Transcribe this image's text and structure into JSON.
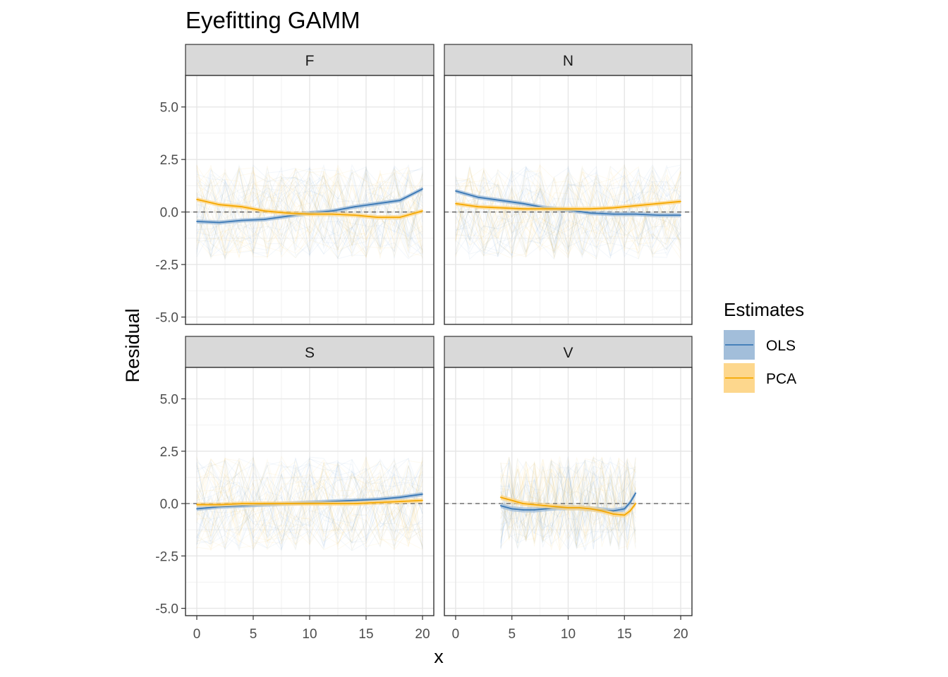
{
  "chart_data": {
    "type": "line",
    "title": "Eyefitting GAMM",
    "xlabel": "x",
    "ylabel": "Residual",
    "xlim": [
      -1,
      21
    ],
    "ylim": [
      -5.35,
      6.5
    ],
    "x_ticks": [
      0,
      5,
      10,
      15,
      20
    ],
    "y_ticks": [
      -5.0,
      -2.5,
      0.0,
      2.5,
      5.0
    ],
    "x_tick_labels": [
      "0",
      "5",
      "10",
      "15",
      "20"
    ],
    "y_tick_labels": [
      "-5.0",
      "-2.5",
      "0.0",
      "2.5",
      "5.0"
    ],
    "reference_line": 0,
    "grid": true,
    "legend": {
      "title": "Estimates",
      "position": "right",
      "entries": [
        {
          "name": "OLS",
          "color": "#3a78b5",
          "fill": "#9dbbd8"
        },
        {
          "name": "PCA",
          "color": "#f5a800",
          "fill": "#fdd587"
        }
      ]
    },
    "panels": [
      {
        "name": "F",
        "series": [
          {
            "name": "OLS",
            "x": [
              0,
              2,
              4,
              6,
              8,
              10,
              12,
              14,
              16,
              18,
              20
            ],
            "values": [
              -0.45,
              -0.5,
              -0.4,
              -0.35,
              -0.2,
              -0.05,
              0.05,
              0.25,
              0.4,
              0.55,
              1.1
            ],
            "band": 0.1
          },
          {
            "name": "PCA",
            "x": [
              0,
              2,
              4,
              6,
              8,
              10,
              12,
              14,
              16,
              18,
              20
            ],
            "values": [
              0.6,
              0.35,
              0.25,
              0.05,
              -0.05,
              -0.1,
              -0.1,
              -0.15,
              -0.25,
              -0.25,
              0.05
            ],
            "band": 0.1
          }
        ]
      },
      {
        "name": "N",
        "series": [
          {
            "name": "OLS",
            "x": [
              0,
              2,
              4,
              6,
              8,
              10,
              12,
              14,
              16,
              18,
              20
            ],
            "values": [
              1.0,
              0.7,
              0.55,
              0.4,
              0.2,
              0.1,
              -0.05,
              -0.1,
              -0.1,
              -0.15,
              -0.15
            ],
            "band": 0.1
          },
          {
            "name": "PCA",
            "x": [
              0,
              2,
              4,
              6,
              8,
              10,
              12,
              14,
              16,
              18,
              20
            ],
            "values": [
              0.4,
              0.25,
              0.2,
              0.15,
              0.15,
              0.15,
              0.15,
              0.2,
              0.3,
              0.4,
              0.5
            ],
            "band": 0.1
          }
        ]
      },
      {
        "name": "S",
        "series": [
          {
            "name": "OLS",
            "x": [
              0,
              2,
              4,
              6,
              8,
              10,
              12,
              14,
              16,
              18,
              20
            ],
            "values": [
              -0.25,
              -0.15,
              -0.1,
              -0.05,
              0.0,
              0.05,
              0.1,
              0.15,
              0.2,
              0.3,
              0.45
            ],
            "band": 0.1
          },
          {
            "name": "PCA",
            "x": [
              0,
              2,
              4,
              6,
              8,
              10,
              12,
              14,
              16,
              18,
              20
            ],
            "values": [
              -0.05,
              -0.05,
              0.0,
              0.0,
              0.0,
              0.0,
              0.0,
              0.0,
              0.05,
              0.1,
              0.15
            ],
            "band": 0.1
          }
        ]
      },
      {
        "name": "V",
        "series": [
          {
            "name": "OLS",
            "x": [
              4,
              5,
              6,
              7,
              8,
              9,
              10,
              11,
              12,
              13,
              14,
              15,
              15.5,
              16
            ],
            "values": [
              -0.1,
              -0.25,
              -0.3,
              -0.3,
              -0.25,
              -0.2,
              -0.2,
              -0.2,
              -0.25,
              -0.3,
              -0.35,
              -0.25,
              0.05,
              0.5
            ],
            "band": 0.12
          },
          {
            "name": "PCA",
            "x": [
              4,
              5,
              6,
              7,
              8,
              9,
              10,
              11,
              12,
              13,
              14,
              15,
              15.5,
              16
            ],
            "values": [
              0.3,
              0.15,
              0.0,
              -0.05,
              -0.1,
              -0.15,
              -0.2,
              -0.2,
              -0.25,
              -0.35,
              -0.5,
              -0.55,
              -0.35,
              0.0
            ],
            "band": 0.12
          }
        ]
      }
    ]
  }
}
